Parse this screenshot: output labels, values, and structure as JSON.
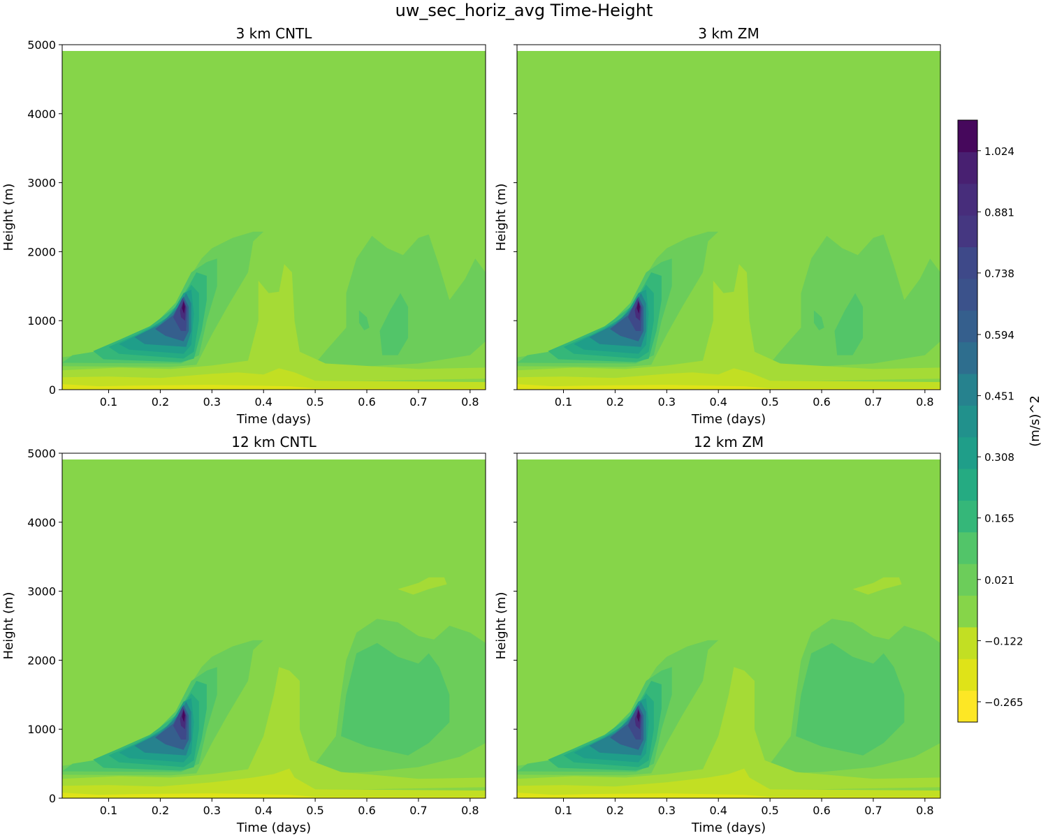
{
  "figure": {
    "title": "uw_sec_horiz_avg Time-Height"
  },
  "colors": {
    "green_bg": "#86d549",
    "green2": "#6ccd5a",
    "green3": "#52c569",
    "teal1": "#35b779",
    "teal2": "#25ab82",
    "teal3": "#1f9e89",
    "teal4": "#21918c",
    "blue1": "#26828e",
    "blue2": "#2e6e8e",
    "blue3": "#355f8d",
    "purple1": "#3e4989",
    "purple2": "#472d7b",
    "purple3": "#46085c",
    "yellow1": "#a5db36",
    "yellow2": "#c2df23",
    "yellow3": "#dfe318"
  },
  "chart_data": [
    {
      "type": "contourf",
      "title": "3 km CNTL",
      "xlabel": "Time (days)",
      "ylabel": "Height (m)",
      "xlim": [
        0.01,
        0.83
      ],
      "ylim": [
        0,
        5000
      ],
      "data_top": 4910,
      "xticks": [
        "0.1",
        "0.2",
        "0.3",
        "0.4",
        "0.5",
        "0.6",
        "0.7",
        "0.8"
      ],
      "xtick_values": [
        0.1,
        0.2,
        0.3,
        0.4,
        0.5,
        0.6,
        0.7,
        0.8
      ],
      "yticks": [
        "0",
        "1000",
        "2000",
        "3000",
        "4000",
        "5000"
      ],
      "ytick_values": [
        0,
        1000,
        2000,
        3000,
        4000,
        5000
      ],
      "features": {
        "peak_time_days": 0.245,
        "peak_height_m": 1250,
        "peak_value": 1.09,
        "positive_region_top_m": 2300,
        "late_positive_region_days": [
          0.56,
          0.82
        ],
        "late_core_value": 0.09,
        "negative_spike_time_days": 0.445,
        "negative_spike_top_m": 1800
      }
    },
    {
      "type": "contourf",
      "title": "3 km ZM",
      "xlabel": "Time (days)",
      "ylabel": "Height (m)",
      "xlim": [
        0.01,
        0.83
      ],
      "ylim": [
        0,
        5000
      ],
      "data_top": 4910,
      "xticks": [
        "0.1",
        "0.2",
        "0.3",
        "0.4",
        "0.5",
        "0.6",
        "0.7",
        "0.8"
      ],
      "xtick_values": [
        0.1,
        0.2,
        0.3,
        0.4,
        0.5,
        0.6,
        0.7,
        0.8
      ],
      "yticks": [
        "",
        "",
        "",
        "",
        "",
        ""
      ],
      "ytick_values": [
        0,
        1000,
        2000,
        3000,
        4000,
        5000
      ],
      "features": {
        "peak_time_days": 0.245,
        "peak_height_m": 1250,
        "peak_value": 1.09,
        "positive_region_top_m": 2300,
        "late_positive_region_days": [
          0.56,
          0.82
        ],
        "late_core_value": 0.09,
        "negative_spike_time_days": 0.445,
        "negative_spike_top_m": 1800
      }
    },
    {
      "type": "contourf",
      "title": "12 km CNTL",
      "xlabel": "Time (days)",
      "ylabel": "Height (m)",
      "xlim": [
        0.01,
        0.83
      ],
      "ylim": [
        0,
        5000
      ],
      "data_top": 4910,
      "xticks": [
        "0.1",
        "0.2",
        "0.3",
        "0.4",
        "0.5",
        "0.6",
        "0.7",
        "0.8"
      ],
      "xtick_values": [
        0.1,
        0.2,
        0.3,
        0.4,
        0.5,
        0.6,
        0.7,
        0.8
      ],
      "yticks": [
        "0",
        "1000",
        "2000",
        "3000",
        "4000",
        "5000"
      ],
      "ytick_values": [
        0,
        1000,
        2000,
        3000,
        4000,
        5000
      ],
      "features": {
        "peak_time_days": 0.245,
        "peak_height_m": 1250,
        "peak_value": 1.09,
        "positive_region_top_m": 2600,
        "late_positive_region_days": [
          0.54,
          0.83
        ],
        "late_core_value": 0.09,
        "negative_patch_m": [
          3000,
          3230
        ],
        "negative_spike_time_days": 0.46,
        "negative_spike_top_m": 1900
      }
    },
    {
      "type": "contourf",
      "title": "12 km ZM",
      "xlabel": "Time (days)",
      "ylabel": "Height (m)",
      "xlim": [
        0.01,
        0.83
      ],
      "ylim": [
        0,
        5000
      ],
      "data_top": 4910,
      "xticks": [
        "0.1",
        "0.2",
        "0.3",
        "0.4",
        "0.5",
        "0.6",
        "0.7",
        "0.8"
      ],
      "xtick_values": [
        0.1,
        0.2,
        0.3,
        0.4,
        0.5,
        0.6,
        0.7,
        0.8
      ],
      "yticks": [
        "",
        "",
        "",
        "",
        "",
        ""
      ],
      "ytick_values": [
        0,
        1000,
        2000,
        3000,
        4000,
        5000
      ],
      "features": {
        "peak_time_days": 0.245,
        "peak_height_m": 1250,
        "peak_value": 1.09,
        "positive_region_top_m": 2600,
        "late_positive_region_days": [
          0.54,
          0.83
        ],
        "late_core_value": 0.09,
        "negative_patch_m": [
          3000,
          3230
        ],
        "negative_spike_time_days": 0.46,
        "negative_spike_top_m": 1900
      }
    }
  ],
  "colorbar": {
    "label": "(m/s)^2",
    "vmin": -0.3125,
    "vmax": 1.0955,
    "levels": 19,
    "level_colors": [
      "#fde725",
      "#dfe318",
      "#c2df23",
      "#86d549",
      "#6ccd5a",
      "#52c569",
      "#35b779",
      "#25ab82",
      "#1f9e89",
      "#21918c",
      "#26828e",
      "#2e6e8e",
      "#355f8d",
      "#3b528b",
      "#3e4989",
      "#453781",
      "#472d7b",
      "#482071",
      "#46085c"
    ],
    "tick_labels": [
      "−0.265",
      "−0.122",
      "0.021",
      "0.165",
      "0.308",
      "0.451",
      "0.594",
      "0.738",
      "0.881",
      "1.024"
    ],
    "tick_values": [
      -0.265,
      -0.122,
      0.021,
      0.165,
      0.308,
      0.451,
      0.594,
      0.738,
      0.881,
      1.024
    ]
  }
}
